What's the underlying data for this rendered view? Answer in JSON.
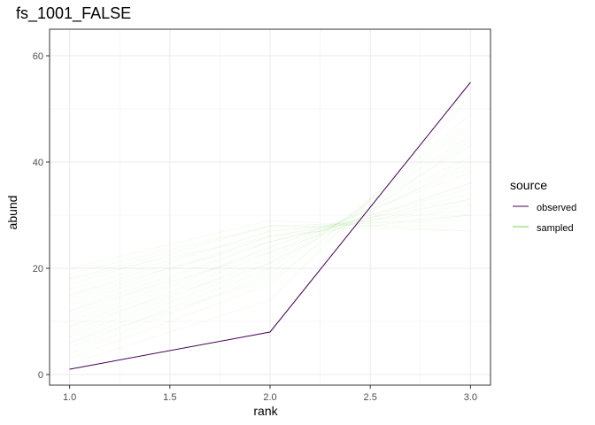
{
  "chart_data": {
    "type": "line",
    "title": "fs_1001_FALSE",
    "xlabel": "rank",
    "ylabel": "abund",
    "xlim": [
      0.9,
      3.1
    ],
    "ylim": [
      -2,
      65
    ],
    "x_ticks": [
      "1.0",
      "1.5",
      "2.0",
      "2.5",
      "3.0"
    ],
    "y_ticks": [
      "0",
      "20",
      "40",
      "60"
    ],
    "grid": true,
    "legend": {
      "title": "source",
      "placement": "right",
      "entries": [
        "observed",
        "sampled"
      ]
    },
    "series": [
      {
        "name": "observed",
        "color": "#440154",
        "x": [
          1,
          2,
          3
        ],
        "values": [
          1,
          8,
          55
        ]
      },
      {
        "name": "sampled",
        "color": "#7ad151",
        "style": "many faint overlapping draws",
        "x": [
          1,
          2,
          3
        ],
        "values": [
          [
            2,
            14,
            52
          ],
          [
            3,
            17,
            49
          ],
          [
            4,
            19,
            47
          ],
          [
            5,
            20,
            45
          ],
          [
            6,
            21,
            43
          ],
          [
            7,
            22,
            41
          ],
          [
            8,
            23,
            39
          ],
          [
            9,
            24,
            38
          ],
          [
            10,
            24,
            36
          ],
          [
            11,
            25,
            35
          ],
          [
            12,
            25,
            34
          ],
          [
            13,
            26,
            33
          ],
          [
            14,
            26,
            32
          ],
          [
            15,
            27,
            31
          ],
          [
            16,
            27,
            30
          ],
          [
            17,
            28,
            29
          ],
          [
            18,
            28,
            28
          ],
          [
            19,
            28,
            27
          ],
          [
            20,
            29,
            27
          ],
          [
            6,
            18,
            44
          ],
          [
            9,
            21,
            40
          ],
          [
            12,
            23,
            36
          ],
          [
            15,
            25,
            33
          ],
          [
            18,
            26,
            30
          ]
        ]
      }
    ]
  }
}
